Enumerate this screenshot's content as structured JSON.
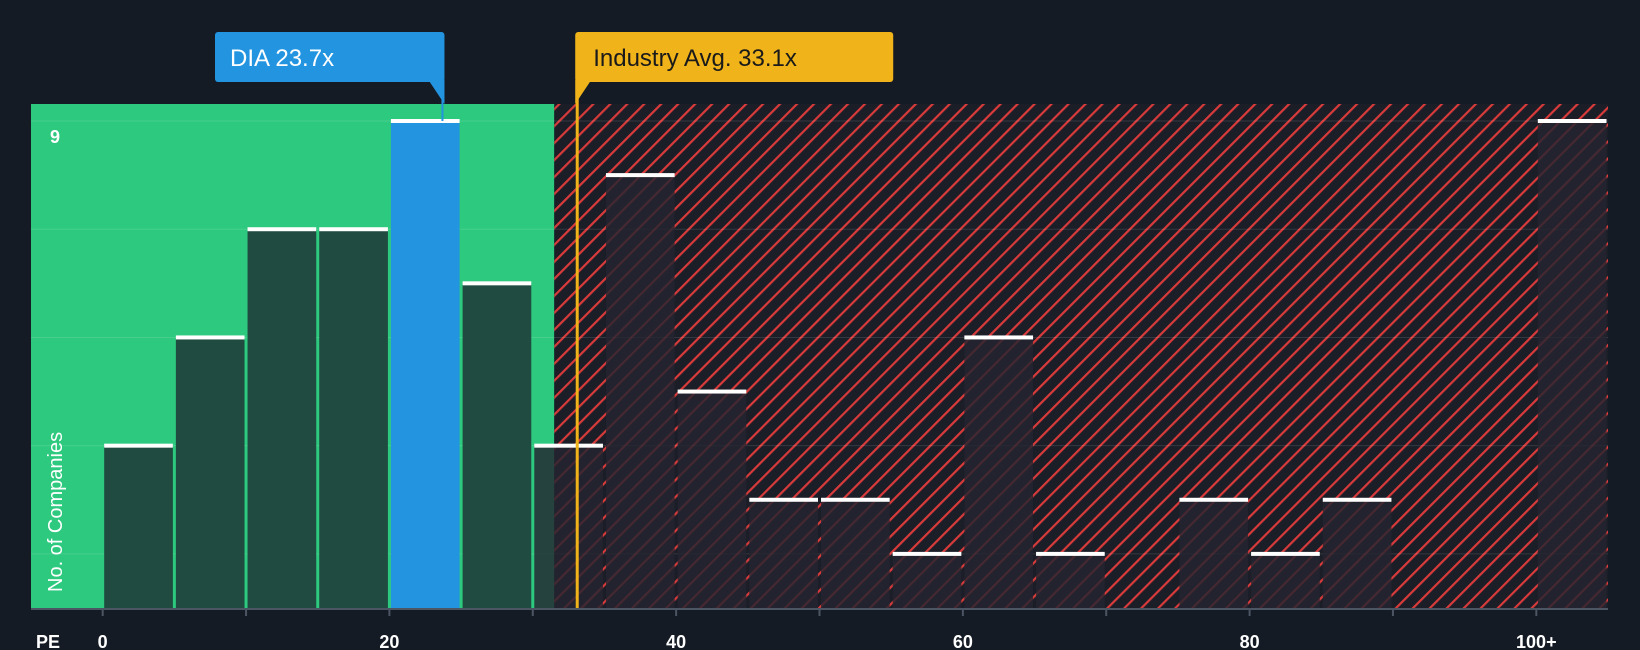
{
  "chart_data": {
    "type": "bar",
    "title": "",
    "xlabel": "PE",
    "ylabel": "No. of Companies",
    "xlim": [
      -5,
      105
    ],
    "ylim": [
      0,
      9
    ],
    "bin_width": 5,
    "x_ticks": [
      {
        "value": 0,
        "label": "0"
      },
      {
        "value": 20,
        "label": "20"
      },
      {
        "value": 40,
        "label": "40"
      },
      {
        "value": 60,
        "label": "60"
      },
      {
        "value": 80,
        "label": "80"
      },
      {
        "value": 100,
        "label": "100+"
      }
    ],
    "y_ticks": [
      {
        "value": 9,
        "label": "9"
      }
    ],
    "bins": [
      {
        "start": 0,
        "count": 3
      },
      {
        "start": 5,
        "count": 5
      },
      {
        "start": 10,
        "count": 7
      },
      {
        "start": 15,
        "count": 7
      },
      {
        "start": 20,
        "count": 9
      },
      {
        "start": 25,
        "count": 6
      },
      {
        "start": 30,
        "count": 3
      },
      {
        "start": 35,
        "count": 8
      },
      {
        "start": 40,
        "count": 4
      },
      {
        "start": 45,
        "count": 2
      },
      {
        "start": 50,
        "count": 2
      },
      {
        "start": 55,
        "count": 1
      },
      {
        "start": 60,
        "count": 5
      },
      {
        "start": 65,
        "count": 1
      },
      {
        "start": 70,
        "count": 0
      },
      {
        "start": 75,
        "count": 2
      },
      {
        "start": 80,
        "count": 1
      },
      {
        "start": 85,
        "count": 2
      },
      {
        "start": 90,
        "count": 0
      },
      {
        "start": 95,
        "count": 0
      },
      {
        "start": 100,
        "count": 9
      }
    ],
    "company": {
      "name": "DIA",
      "value": 23.7,
      "label": "DIA 23.7x",
      "color": "#2394e0"
    },
    "industry_avg": {
      "value": 33.1,
      "label": "Industry Avg. 33.1x",
      "color": "#f0b319"
    },
    "fair_zone_end": 31.5,
    "colors": {
      "background": "#151b24",
      "fair_zone": "#2dc97e",
      "bar_fill": "#1f4b40",
      "over_zone_stripe": "#d93b3b",
      "over_bar_fill": "#242530",
      "bar_cap": "#ffffff"
    }
  }
}
